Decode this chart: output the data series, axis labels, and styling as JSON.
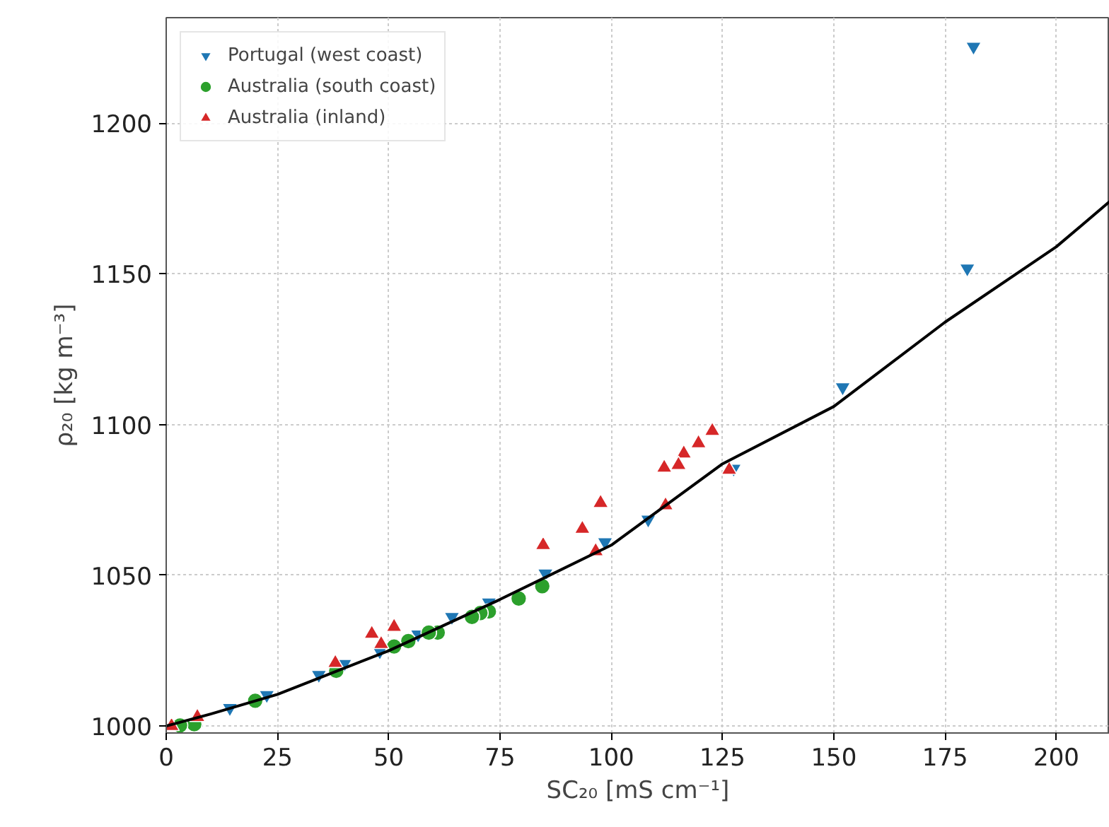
{
  "chart_data": {
    "type": "scatter",
    "xlabel": "SC₂₀ [mS cm⁻¹]",
    "ylabel": "ρ₂₀ [kg m⁻³]",
    "xlim": [
      0,
      212
    ],
    "ylim": [
      997.7,
      1235
    ],
    "xticks": [
      0,
      25,
      50,
      75,
      100,
      125,
      150,
      175,
      200
    ],
    "yticks": [
      1000,
      1050,
      1100,
      1150,
      1200
    ],
    "grid": true,
    "legend": "top left",
    "series": [
      {
        "name": "Portugal (west coast)",
        "color": "#1f77b4",
        "marker": "triangle_down",
        "x": [
          181.4,
          180,
          152,
          127.5,
          108.3,
          98.6,
          85.2,
          72.5,
          64.2,
          56.6,
          48,
          40,
          34.3,
          22.6,
          14.3
        ],
        "values": [
          1225.4,
          1151.8,
          1112.4,
          1085.4,
          1068.5,
          1061,
          1050.6,
          1041,
          1036.2,
          1030.4,
          1024.8,
          1020.6,
          1017,
          1010.3,
          1006
        ]
      },
      {
        "name": "Australia (south coast)",
        "color": "#2ca02c",
        "marker": "circle",
        "x": [
          84.5,
          79.2,
          72.5,
          70.6,
          68.7,
          61,
          59,
          54.4,
          51.2,
          38.2,
          20,
          6.3,
          3.1
        ],
        "values": [
          1046.4,
          1042.3,
          1038,
          1037.5,
          1036.2,
          1031,
          1031,
          1028.2,
          1026.4,
          1018.3,
          1008.4,
          1000.6,
          1000.2
        ]
      },
      {
        "name": "Australia (inland)",
        "color": "#d62728",
        "marker": "triangle",
        "x": [
          122.7,
          119.6,
          116.3,
          115.1,
          111.9,
          112.2,
          97.6,
          93.5,
          96.5,
          84.7,
          126.5,
          51.2,
          46.2,
          48.3,
          38,
          7,
          1.2
        ],
        "values": [
          1097.9,
          1093.8,
          1090.4,
          1086.6,
          1085.7,
          1073.2,
          1074,
          1065.4,
          1058,
          1060,
          1085,
          1032.9,
          1030.6,
          1027.2,
          1020.9,
          1003,
          1000
        ]
      },
      {
        "type": "line",
        "color": "#000000",
        "line_style": "solid",
        "x": [
          0,
          10,
          25,
          50,
          75,
          100,
          125,
          150,
          175,
          200,
          212
        ],
        "values": [
          1000,
          1004,
          1010.5,
          1025,
          1042,
          1060,
          1087,
          1106,
          1134,
          1159,
          1174
        ]
      }
    ]
  }
}
